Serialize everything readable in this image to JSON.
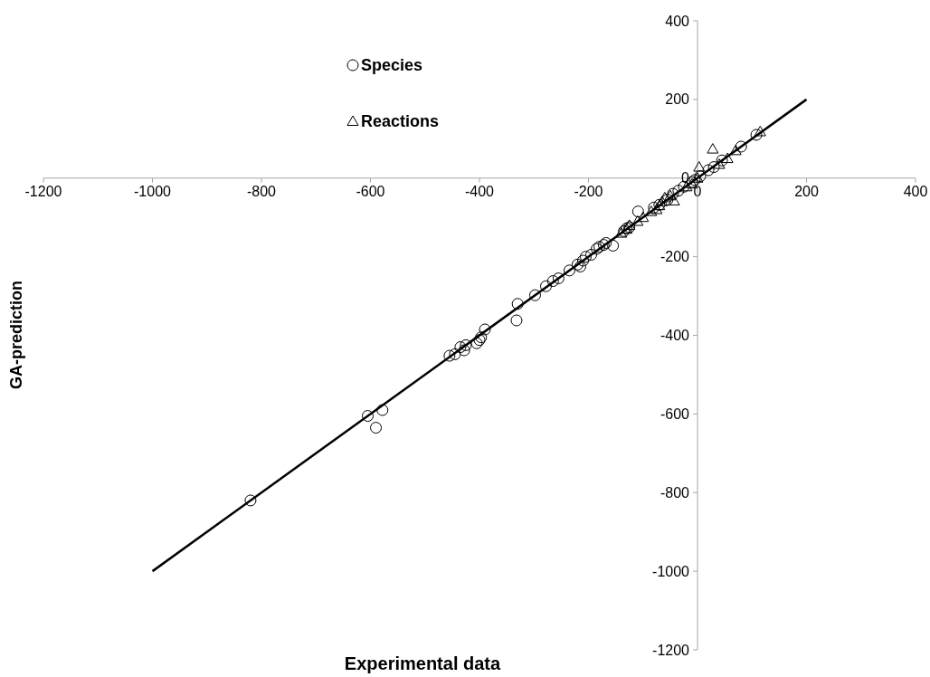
{
  "chart_data": {
    "type": "scatter",
    "xlabel": "Experimental data",
    "ylabel": "GA-prediction",
    "xlim": [
      -1200,
      400
    ],
    "ylim": [
      -1200,
      400
    ],
    "xticks": [
      -1200,
      -1000,
      -800,
      -600,
      -400,
      -200,
      0,
      200,
      400
    ],
    "yticks": [
      -1200,
      -1000,
      -800,
      -600,
      -400,
      -200,
      0,
      200,
      400
    ],
    "grid": false,
    "legend": "top left",
    "series": [
      {
        "name": "Species",
        "color": "#000000",
        "marker": "circle",
        "x": [
          -820,
          -605,
          -590,
          -578,
          -455,
          -445,
          -435,
          -428,
          -425,
          -405,
          -400,
          -397,
          -390,
          -330,
          -332,
          -298,
          -278,
          -265,
          -255,
          -235,
          -220,
          -215,
          -210,
          -205,
          -195,
          -185,
          -180,
          -172,
          -168,
          -155,
          -135,
          -130,
          -125,
          -109,
          -80,
          -70,
          -55,
          -45,
          -35,
          -25,
          -10,
          -5,
          5,
          20,
          30,
          45,
          80,
          108
        ],
        "values": [
          -820,
          -605,
          -635,
          -590,
          -452,
          -448,
          -430,
          -438,
          -425,
          -420,
          -412,
          -405,
          -385,
          -320,
          -362,
          -298,
          -275,
          -262,
          -255,
          -235,
          -220,
          -225,
          -210,
          -200,
          -195,
          -180,
          -175,
          -170,
          -165,
          -172,
          -135,
          -128,
          -125,
          -85,
          -75,
          -68,
          -55,
          -40,
          -32,
          -22,
          -10,
          -5,
          5,
          20,
          28,
          45,
          80,
          110
        ]
      },
      {
        "name": "Reactions",
        "color": "#000000",
        "marker": "triangle",
        "x": [
          -140,
          -130,
          -125,
          -110,
          -100,
          -85,
          -75,
          -70,
          -65,
          -43,
          -60,
          -50,
          -20,
          -10,
          0,
          3,
          28,
          40,
          55,
          70,
          115
        ],
        "values": [
          -140,
          -130,
          -120,
          -110,
          -100,
          -85,
          -80,
          -70,
          -60,
          -58,
          -50,
          -45,
          -22,
          -15,
          0,
          28,
          74,
          35,
          50,
          70,
          118
        ]
      },
      {
        "type": "line",
        "color": "#000000",
        "marker": "none",
        "x": [
          -1000,
          200
        ],
        "values": [
          -1000,
          200
        ]
      }
    ]
  }
}
